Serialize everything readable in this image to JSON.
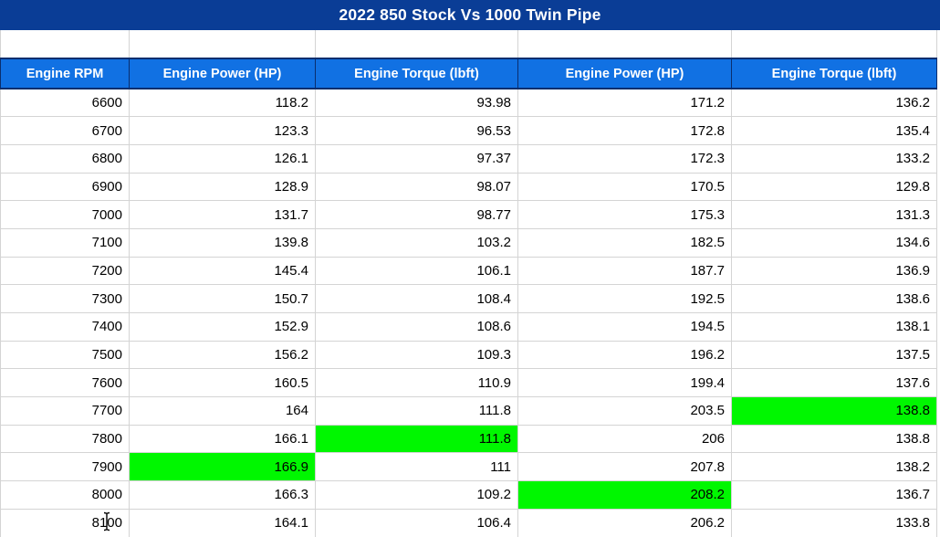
{
  "title_bar": {
    "title": "2022 850 Stock Vs 1000 Twin Pipe"
  },
  "colors": {
    "title_bg": "#0A3D96",
    "header_bg": "#1171E3",
    "header_border": "#0A2E6E",
    "header_text": "#FFFFFF",
    "highlight_green": "#00F700",
    "gridline": "#D4D4D4",
    "text": "#000000"
  },
  "table": {
    "headers": [
      "Engine RPM",
      "Engine Power (HP)",
      "Engine Torque (lbft)",
      "Engine Power (HP)",
      "Engine Torque (lbft)"
    ],
    "rows": [
      {
        "cells": [
          "6600",
          "118.2",
          "93.98",
          "171.2",
          "136.2"
        ],
        "highlight": -1
      },
      {
        "cells": [
          "6700",
          "123.3",
          "96.53",
          "172.8",
          "135.4"
        ],
        "highlight": -1
      },
      {
        "cells": [
          "6800",
          "126.1",
          "97.37",
          "172.3",
          "133.2"
        ],
        "highlight": -1
      },
      {
        "cells": [
          "6900",
          "128.9",
          "98.07",
          "170.5",
          "129.8"
        ],
        "highlight": -1
      },
      {
        "cells": [
          "7000",
          "131.7",
          "98.77",
          "175.3",
          "131.3"
        ],
        "highlight": -1
      },
      {
        "cells": [
          "7100",
          "139.8",
          "103.2",
          "182.5",
          "134.6"
        ],
        "highlight": -1
      },
      {
        "cells": [
          "7200",
          "145.4",
          "106.1",
          "187.7",
          "136.9"
        ],
        "highlight": -1
      },
      {
        "cells": [
          "7300",
          "150.7",
          "108.4",
          "192.5",
          "138.6"
        ],
        "highlight": -1
      },
      {
        "cells": [
          "7400",
          "152.9",
          "108.6",
          "194.5",
          "138.1"
        ],
        "highlight": -1
      },
      {
        "cells": [
          "7500",
          "156.2",
          "109.3",
          "196.2",
          "137.5"
        ],
        "highlight": -1
      },
      {
        "cells": [
          "7600",
          "160.5",
          "110.9",
          "199.4",
          "137.6"
        ],
        "highlight": -1
      },
      {
        "cells": [
          "7700",
          "164",
          "111.8",
          "203.5",
          "138.8"
        ],
        "highlight": 4
      },
      {
        "cells": [
          "7800",
          "166.1",
          "111.8",
          "206",
          "138.8"
        ],
        "highlight": 2
      },
      {
        "cells": [
          "7900",
          "166.9",
          "111",
          "207.8",
          "138.2"
        ],
        "highlight": 1
      },
      {
        "cells": [
          "8000",
          "166.3",
          "109.2",
          "208.2",
          "136.7"
        ],
        "highlight": 3
      },
      {
        "cells": [
          "8100",
          "164.1",
          "106.4",
          "206.2",
          "133.8"
        ],
        "highlight": -1
      }
    ]
  },
  "cursor": {
    "type": "text-ibeam",
    "in_cell": "8100"
  }
}
